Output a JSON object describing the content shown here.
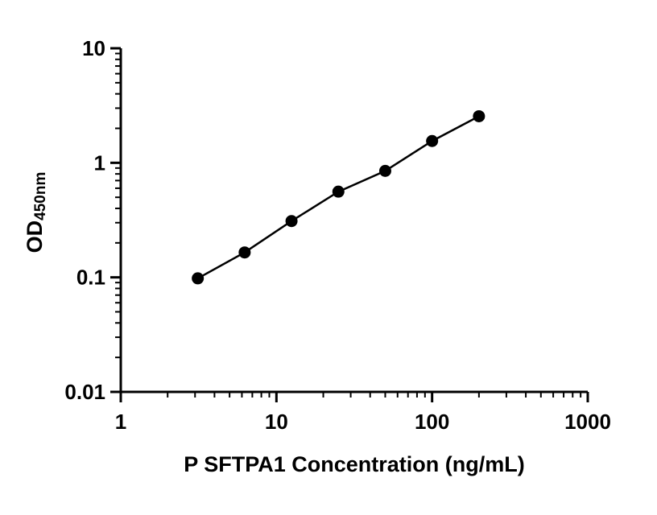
{
  "chart_data": {
    "type": "scatter",
    "scale": "log-log",
    "x": [
      3.125,
      6.25,
      12.5,
      25,
      50,
      100,
      200
    ],
    "y": [
      0.098,
      0.165,
      0.31,
      0.56,
      0.85,
      1.55,
      2.55
    ],
    "title": "",
    "xlabel": "P SFTPA1 Concentration (ng/mL)",
    "ylabel_main": "OD",
    "ylabel_sub": "450nm",
    "xlim": [
      1,
      1000
    ],
    "ylim": [
      0.01,
      10
    ],
    "xticks": [
      1,
      10,
      100,
      1000
    ],
    "yticks": [
      0.01,
      0.1,
      1,
      10
    ],
    "xtick_labels": [
      "1",
      "10",
      "100",
      "1000"
    ],
    "ytick_labels": [
      "0.01",
      "0.1",
      "1",
      "10"
    ],
    "grid": false,
    "legend": false,
    "line_color": "#000000",
    "marker_color": "#000000",
    "axis_color": "#000000",
    "background": "#ffffff"
  }
}
